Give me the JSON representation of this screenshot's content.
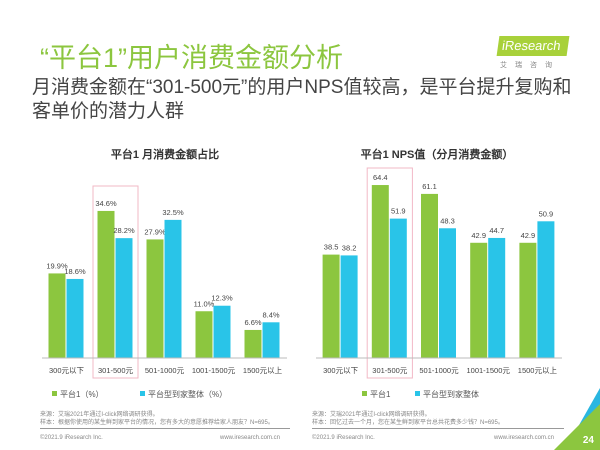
{
  "header": {
    "title": "“平台1”用户消费金额分析",
    "subtitle": "月消费金额在“301-500元”的用户NPS值较高，是平台提升复购和客单价的潜力人群",
    "logo": "iResearch",
    "logo_sub": "艾瑞咨询"
  },
  "colors": {
    "green": "#8cc63f",
    "blue": "#29c4e8",
    "highlight": "#f2b8c6"
  },
  "chart_data": [
    {
      "type": "bar",
      "title": "平台1 月消费金额占比",
      "categories": [
        "300元以下",
        "301-500元",
        "501-1000元",
        "1001-1500元",
        "1500元以上"
      ],
      "series": [
        {
          "name": "平台1（%）",
          "values": [
            19.9,
            34.6,
            27.9,
            11.0,
            6.6
          ]
        },
        {
          "name": "平台型到家整体（%）",
          "values": [
            18.6,
            28.2,
            32.5,
            12.3,
            8.4
          ]
        }
      ],
      "value_labels": [
        [
          "19.9%",
          "34.6%",
          "27.9%",
          "11.0%",
          "6.6%"
        ],
        [
          "18.6%",
          "28.2%",
          "32.5%",
          "12.3%",
          "8.4%"
        ]
      ],
      "ylim": [
        0,
        40
      ],
      "highlight_category": "301-500元",
      "legend": "bottom"
    },
    {
      "type": "bar",
      "title": "平台1 NPS值（分月消费金额）",
      "categories": [
        "300元以下",
        "301-500元",
        "501-1000元",
        "1001-1500元",
        "1500元以上"
      ],
      "series": [
        {
          "name": "平台1",
          "values": [
            38.5,
            64.4,
            61.1,
            42.9,
            42.9
          ]
        },
        {
          "name": "平台型到家整体",
          "values": [
            38.2,
            51.9,
            48.3,
            44.7,
            50.9
          ]
        }
      ],
      "value_labels": [
        [
          "38.5",
          "64.4",
          "61.1",
          "42.9",
          "42.9"
        ],
        [
          "38.2",
          "51.9",
          "48.3",
          "44.7",
          "50.9"
        ]
      ],
      "ylim": [
        0,
        70
      ],
      "highlight_category": "301-500元",
      "legend": "bottom"
    }
  ],
  "footer": {
    "left": {
      "source": "来源：艾瑞2021年通过I-click网络调研获得。",
      "sample": "样本：根据你使用的某生鲜到家平台的情况，您有多大的意愿推荐给家人朋友？N=695。",
      "copyright": "©2021.9 iResearch Inc.",
      "url": "www.iresearch.com.cn"
    },
    "right": {
      "source": "来源：艾瑞2021年通过I-click网络调研获得。",
      "sample": "样本：回忆过去一个月，您在某生鲜到家平台总共花费多少钱？N=695。",
      "copyright": "©2021.9 iResearch Inc.",
      "url": "www.iresearch.com.cn"
    },
    "page": "24"
  }
}
